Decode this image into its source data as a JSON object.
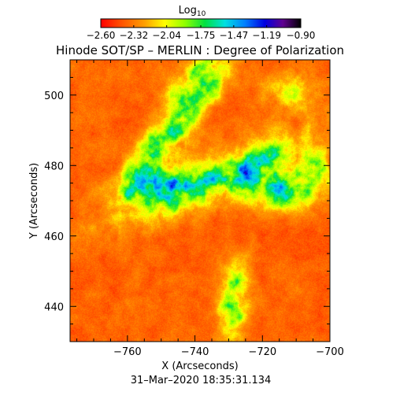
{
  "chart_data": {
    "type": "heatmap",
    "title": "Hinode SOT/SP – MERLIN : Degree of Polarization",
    "colorbar": {
      "label": "Log",
      "label_subscript": "10",
      "min": -2.6,
      "max": -0.9,
      "ticks": [
        -2.6,
        -2.32,
        -2.04,
        -1.75,
        -1.47,
        -1.19,
        -0.9
      ],
      "tick_labels": [
        "−2.60",
        "−2.32",
        "−2.04",
        "−1.75",
        "−1.47",
        "−1.19",
        "−0.90"
      ],
      "colormap": "rainbow"
    },
    "x_axis": {
      "label": "X (Arcseconds)",
      "range": [
        -777,
        -700
      ],
      "ticks": [
        -760,
        -740,
        -720,
        -700
      ],
      "tick_labels": [
        "−760",
        "−740",
        "−720",
        "−700"
      ]
    },
    "y_axis": {
      "label": "Y (Arcseconds)",
      "range": [
        430,
        510
      ],
      "ticks": [
        440,
        460,
        480,
        500
      ],
      "tick_labels": [
        "440",
        "460",
        "480",
        "500"
      ]
    },
    "timestamp": "31–Mar–2020 18:35:31.134"
  }
}
